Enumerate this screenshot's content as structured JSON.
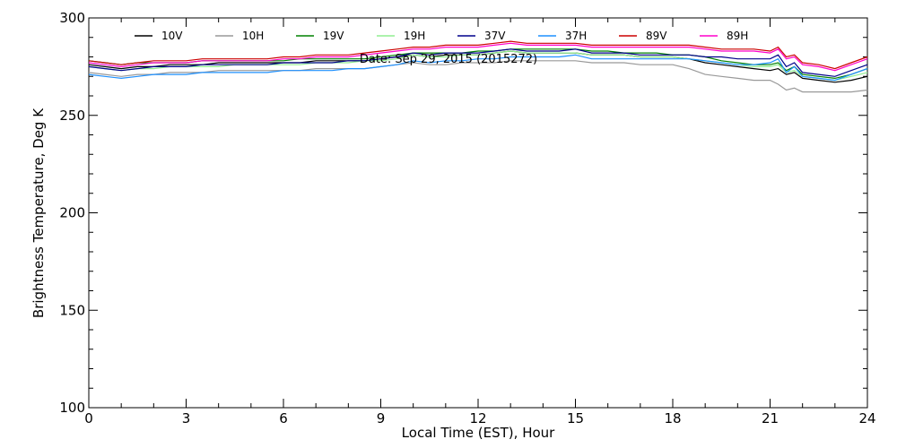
{
  "chart_data": {
    "type": "line",
    "title": "",
    "annotation": "Date: Sep 29, 2015 (2015272)",
    "xlabel": "Local Time (EST), Hour",
    "ylabel": "Brightness Temperature, Deg K",
    "xlim": [
      0,
      24
    ],
    "ylim": [
      100,
      300
    ],
    "xticks": [
      0,
      3,
      6,
      9,
      12,
      15,
      18,
      21,
      24
    ],
    "xtick_labels": [
      "0",
      "3",
      "6",
      "9",
      "12",
      "15",
      "18",
      "21",
      "24"
    ],
    "yticks": [
      100,
      150,
      200,
      250,
      300
    ],
    "ytick_labels": [
      "100",
      "150",
      "200",
      "250",
      "300"
    ],
    "legend_position": "top",
    "grid": false,
    "x": [
      0,
      0.5,
      1,
      1.5,
      2,
      2.5,
      3,
      3.5,
      4,
      4.5,
      5,
      5.5,
      6,
      6.5,
      7,
      7.5,
      8,
      8.5,
      9,
      9.5,
      10,
      10.5,
      11,
      11.5,
      12,
      12.5,
      13,
      13.5,
      14,
      14.5,
      15,
      15.5,
      16,
      16.5,
      17,
      17.5,
      18,
      18.5,
      19,
      19.5,
      20,
      20.5,
      21,
      21.25,
      21.5,
      21.75,
      22,
      22.5,
      23,
      23.5,
      24
    ],
    "series": [
      {
        "name": "10V",
        "color": "#000000",
        "values": [
          276,
          275,
          274,
          275,
          275,
          276,
          276,
          276,
          277,
          277,
          277,
          277,
          277,
          277,
          278,
          278,
          278,
          278,
          279,
          280,
          281,
          280,
          281,
          281,
          281,
          282,
          283,
          282,
          282,
          282,
          282,
          281,
          281,
          281,
          280,
          280,
          280,
          279,
          277,
          276,
          275,
          274,
          273,
          274,
          271,
          272,
          269,
          268,
          267,
          268,
          270
        ]
      },
      {
        "name": "10H",
        "color": "#999999",
        "values": [
          272,
          271,
          270,
          271,
          271,
          272,
          272,
          272,
          273,
          273,
          273,
          273,
          273,
          273,
          274,
          274,
          274,
          274,
          275,
          276,
          277,
          276,
          276,
          277,
          277,
          277,
          278,
          278,
          278,
          278,
          278,
          277,
          277,
          277,
          276,
          276,
          276,
          274,
          271,
          270,
          269,
          268,
          268,
          266,
          263,
          264,
          262,
          262,
          262,
          262,
          263
        ]
      },
      {
        "name": "19V",
        "color": "#008000",
        "values": [
          278,
          277,
          276,
          277,
          277,
          277,
          277,
          278,
          278,
          278,
          278,
          278,
          278,
          279,
          279,
          279,
          279,
          279,
          280,
          281,
          282,
          282,
          282,
          282,
          283,
          283,
          284,
          284,
          284,
          284,
          284,
          283,
          283,
          282,
          282,
          282,
          281,
          281,
          280,
          278,
          277,
          276,
          276,
          277,
          273,
          275,
          271,
          270,
          269,
          271,
          274
        ]
      },
      {
        "name": "19H",
        "color": "#90ee90",
        "values": [
          275,
          274,
          273,
          274,
          274,
          275,
          275,
          275,
          275,
          276,
          276,
          276,
          276,
          276,
          277,
          277,
          277,
          278,
          278,
          279,
          281,
          280,
          280,
          281,
          281,
          282,
          283,
          282,
          282,
          282,
          282,
          281,
          281,
          281,
          280,
          280,
          280,
          279,
          278,
          277,
          276,
          275,
          275,
          276,
          272,
          273,
          270,
          269,
          268,
          270,
          272
        ]
      },
      {
        "name": "37V",
        "color": "#00008b",
        "values": [
          275,
          274,
          273,
          274,
          275,
          275,
          275,
          276,
          276,
          276,
          276,
          276,
          277,
          277,
          277,
          277,
          278,
          278,
          279,
          280,
          282,
          281,
          282,
          282,
          282,
          283,
          284,
          283,
          283,
          283,
          284,
          282,
          282,
          282,
          281,
          281,
          281,
          281,
          280,
          280,
          279,
          279,
          279,
          281,
          275,
          277,
          272,
          271,
          270,
          273,
          276
        ]
      },
      {
        "name": "37H",
        "color": "#1e90ff",
        "values": [
          271,
          270,
          269,
          270,
          271,
          271,
          271,
          272,
          272,
          272,
          272,
          272,
          273,
          273,
          273,
          273,
          274,
          274,
          275,
          276,
          278,
          277,
          278,
          278,
          279,
          279,
          280,
          280,
          280,
          280,
          281,
          279,
          279,
          279,
          279,
          279,
          279,
          279,
          278,
          277,
          276,
          276,
          277,
          279,
          272,
          275,
          270,
          269,
          268,
          271,
          274
        ]
      },
      {
        "name": "89V",
        "color": "#cc0000",
        "values": [
          278,
          277,
          276,
          277,
          278,
          278,
          278,
          279,
          279,
          279,
          279,
          279,
          280,
          280,
          281,
          281,
          281,
          282,
          283,
          284,
          285,
          285,
          286,
          286,
          286,
          287,
          288,
          287,
          287,
          287,
          287,
          286,
          286,
          286,
          286,
          286,
          286,
          286,
          285,
          284,
          284,
          284,
          283,
          285,
          280,
          281,
          277,
          276,
          274,
          277,
          280
        ]
      },
      {
        "name": "89H",
        "color": "#ff00cc",
        "values": [
          277,
          276,
          275,
          276,
          277,
          277,
          277,
          278,
          278,
          278,
          278,
          278,
          279,
          279,
          280,
          280,
          280,
          281,
          282,
          283,
          284,
          284,
          285,
          285,
          285,
          286,
          287,
          286,
          286,
          286,
          286,
          285,
          285,
          285,
          285,
          285,
          285,
          285,
          284,
          283,
          283,
          283,
          282,
          284,
          279,
          280,
          276,
          275,
          273,
          276,
          279
        ]
      }
    ]
  }
}
